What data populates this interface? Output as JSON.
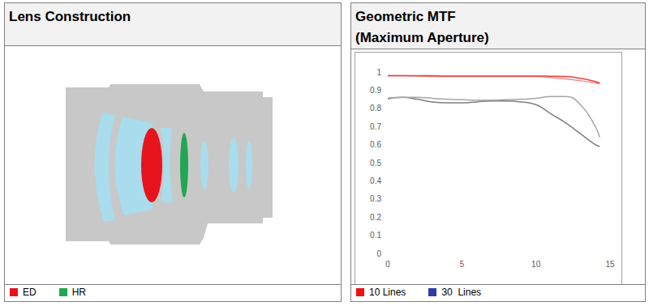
{
  "lens_construction": {
    "title": "Lens Construction",
    "legend": [
      {
        "label": "ED",
        "color": "#e8141c"
      },
      {
        "label": "HR",
        "color": "#22a653"
      }
    ]
  },
  "mtf_panel": {
    "legend": [
      {
        "label": "10 Lines",
        "color": "#ee1111"
      },
      {
        "label": "30  Lines",
        "color": "#2e3ca8"
      }
    ]
  },
  "chart_data": {
    "type": "line",
    "title": "Geometric MTF",
    "subtitle": "(Maximum Aperture)",
    "x": [
      0,
      1,
      2,
      3,
      4,
      5,
      6,
      7,
      8,
      9,
      10,
      11,
      12,
      13,
      14,
      14.3
    ],
    "series": [
      {
        "color": "#e8413c",
        "line_style": "solid",
        "marker": "none",
        "values": [
          0.98,
          0.98,
          0.98,
          0.98,
          0.978,
          0.978,
          0.978,
          0.978,
          0.978,
          0.978,
          0.978,
          0.977,
          0.975,
          0.965,
          0.948,
          0.94
        ]
      },
      {
        "color": "#f28b8b",
        "line_style": "solid",
        "marker": "none",
        "values": [
          0.98,
          0.98,
          0.978,
          0.976,
          0.975,
          0.975,
          0.975,
          0.975,
          0.975,
          0.975,
          0.975,
          0.97,
          0.962,
          0.952,
          0.94,
          0.935
        ]
      },
      {
        "color": "#a6a6a6",
        "line_style": "solid",
        "marker": "none",
        "values": [
          0.85,
          0.86,
          0.86,
          0.855,
          0.85,
          0.848,
          0.845,
          0.845,
          0.848,
          0.85,
          0.855,
          0.865,
          0.865,
          0.82,
          0.7,
          0.64
        ]
      },
      {
        "color": "#7f7f7f",
        "line_style": "solid",
        "marker": "none",
        "values": [
          0.855,
          0.86,
          0.85,
          0.835,
          0.83,
          0.83,
          0.835,
          0.84,
          0.84,
          0.835,
          0.82,
          0.77,
          0.72,
          0.66,
          0.6,
          0.59
        ]
      }
    ],
    "xlim": [
      0,
      15
    ],
    "xticks": [
      0,
      5,
      10,
      15
    ],
    "ylim": [
      0,
      1
    ],
    "yticks": [
      0,
      0.1,
      0.2,
      0.3,
      0.4,
      0.5,
      0.6,
      0.7,
      0.8,
      0.9,
      1
    ],
    "grid": false
  }
}
